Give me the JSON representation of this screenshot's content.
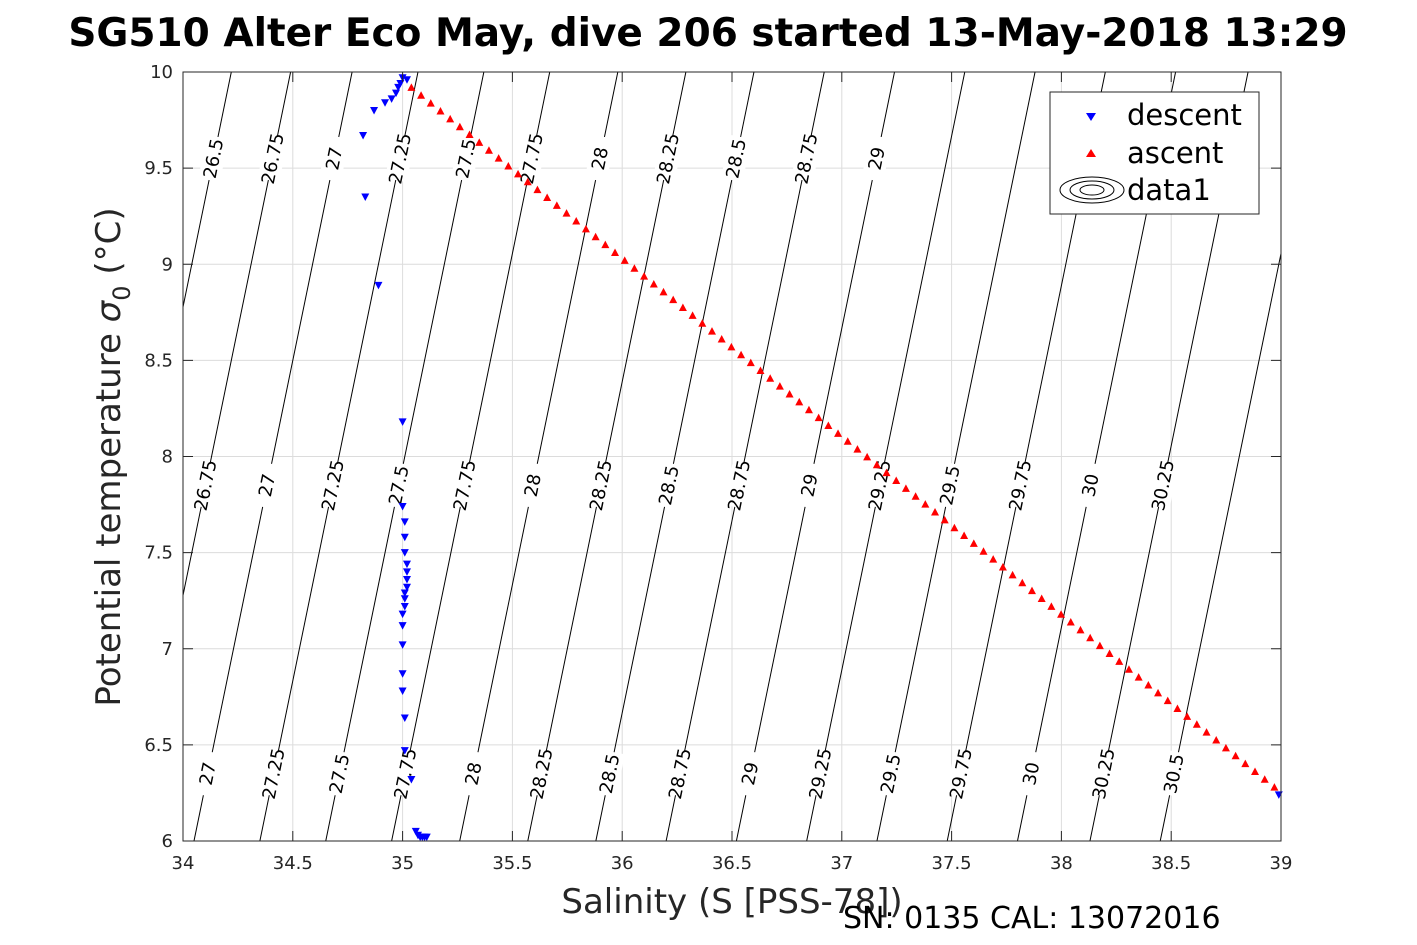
{
  "chart_data": {
    "type": "scatter",
    "title": "SG510 Alter Eco May, dive 206 started 13-May-2018 13:29",
    "xlabel": "Salinity (S [PSS-78])",
    "ylabel_main": "Potential temperature ",
    "ylabel_sigma": "σ",
    "ylabel_sub": "0",
    "ylabel_unit": " (°C)",
    "footer": "SN: 0135  CAL: 13072016",
    "xlim": [
      34,
      39
    ],
    "ylim": [
      6,
      10
    ],
    "x_ticks": [
      "34",
      "34.5",
      "35",
      "35.5",
      "36",
      "36.5",
      "37",
      "37.5",
      "38",
      "38.5",
      "39"
    ],
    "y_ticks": [
      "6",
      "6.5",
      "7",
      "7.5",
      "8",
      "8.5",
      "9",
      "9.5",
      "10"
    ],
    "grid": true,
    "legend_position": "top-right",
    "legend": [
      {
        "label": "descent",
        "marker": "triangle-down",
        "color": "#0000ff"
      },
      {
        "label": "ascent",
        "marker": "triangle-up",
        "color": "#ff0000"
      },
      {
        "label": "data1",
        "marker": "contour",
        "color": "#000000"
      }
    ],
    "series": [
      {
        "name": "descent",
        "color": "#0000ff",
        "marker": "triangle-down",
        "points": [
          [
            35.0,
            9.97
          ],
          [
            35.02,
            9.96
          ],
          [
            34.99,
            9.94
          ],
          [
            34.98,
            9.92
          ],
          [
            34.97,
            9.89
          ],
          [
            34.95,
            9.86
          ],
          [
            34.92,
            9.84
          ],
          [
            34.87,
            9.8
          ],
          [
            34.82,
            9.67
          ],
          [
            34.83,
            9.35
          ],
          [
            34.89,
            8.89
          ],
          [
            35.0,
            8.18
          ],
          [
            35.0,
            7.74
          ],
          [
            35.01,
            7.66
          ],
          [
            35.01,
            7.58
          ],
          [
            35.01,
            7.5
          ],
          [
            35.02,
            7.44
          ],
          [
            35.02,
            7.4
          ],
          [
            35.02,
            7.36
          ],
          [
            35.02,
            7.32
          ],
          [
            35.01,
            7.29
          ],
          [
            35.01,
            7.26
          ],
          [
            35.01,
            7.22
          ],
          [
            35.0,
            7.18
          ],
          [
            35.0,
            7.12
          ],
          [
            35.0,
            7.02
          ],
          [
            35.0,
            6.87
          ],
          [
            35.0,
            6.78
          ],
          [
            35.01,
            6.64
          ],
          [
            35.01,
            6.47
          ],
          [
            35.04,
            6.32
          ],
          [
            35.06,
            6.05
          ],
          [
            35.07,
            6.03
          ],
          [
            35.08,
            6.02
          ],
          [
            35.09,
            6.02
          ],
          [
            35.1,
            6.02
          ],
          [
            35.11,
            6.02
          ],
          [
            38.99,
            6.24
          ]
        ]
      },
      {
        "name": "ascent",
        "color": "#ff0000",
        "marker": "triangle-up",
        "x_start": 35.04,
        "y_start": 9.92,
        "x_end": 38.97,
        "y_end": 6.28,
        "count": 90
      }
    ],
    "contours": {
      "lines": [
        {
          "level": "26.5",
          "s_at_10": 34.22,
          "slope": 0.18
        },
        {
          "level": "26.75",
          "s_at_10": 34.49,
          "slope": 0.18
        },
        {
          "level": "27",
          "s_at_10": 34.77,
          "slope": 0.18
        },
        {
          "level": "27.25",
          "s_at_10": 35.07,
          "slope": 0.18
        },
        {
          "level": "27.5",
          "s_at_10": 35.37,
          "slope": 0.18
        },
        {
          "level": "27.75",
          "s_at_10": 35.67,
          "slope": 0.18
        },
        {
          "level": "28",
          "s_at_10": 35.98,
          "slope": 0.18
        },
        {
          "level": "28.25",
          "s_at_10": 36.29,
          "slope": 0.18
        },
        {
          "level": "28.5",
          "s_at_10": 36.6,
          "slope": 0.18
        },
        {
          "level": "28.75",
          "s_at_10": 36.92,
          "slope": 0.18
        },
        {
          "level": "29",
          "s_at_10": 37.24,
          "slope": 0.18
        },
        {
          "level": "29.25",
          "s_at_10": 37.56,
          "slope": 0.18
        },
        {
          "level": "29.5",
          "s_at_10": 37.88,
          "slope": 0.18
        },
        {
          "level": "29.75",
          "s_at_10": 38.2,
          "slope": 0.18
        },
        {
          "level": "30",
          "s_at_10": 38.52,
          "slope": 0.18
        },
        {
          "level": "30.25",
          "s_at_10": 38.85,
          "slope": 0.18
        },
        {
          "level": "30.5",
          "s_at_10": 39.17,
          "slope": 0.18
        }
      ],
      "label_rows": [
        {
          "temp": 9.55,
          "from": 0,
          "to": 11
        },
        {
          "temp": 7.85,
          "from": 1,
          "to": 16
        },
        {
          "temp": 6.35,
          "from": 1,
          "to": 17
        }
      ]
    }
  }
}
